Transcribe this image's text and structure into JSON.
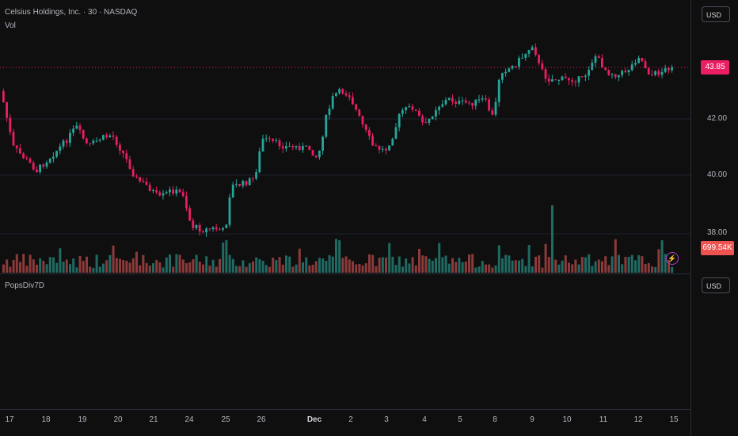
{
  "legend": {
    "symbol_title": "Celsius Holdings, Inc. · 30 · NASDAQ",
    "volume_label": "Vol",
    "indicator_label": "PopsDiv7D"
  },
  "price_scale": {
    "currency": "USD",
    "ticks": [
      "42.00",
      "40.00",
      "38.00"
    ],
    "last_price": "43.85",
    "volume_value": "699.54K"
  },
  "indicator_scale": {
    "currency": "USD"
  },
  "time_axis": {
    "labels": [
      "17",
      "18",
      "19",
      "20",
      "21",
      "24",
      "25",
      "26",
      "Dec",
      "2",
      "3",
      "4",
      "5",
      "8",
      "9",
      "10",
      "11",
      "12",
      "15"
    ]
  },
  "colors": {
    "up": "#26a69a",
    "down": "#e91e63",
    "vol_up": "#1f6b63",
    "vol_down": "#8c3a3a",
    "alert": "#b23ccf"
  },
  "icons": {
    "alert": "lightning-bolt-icon"
  }
}
